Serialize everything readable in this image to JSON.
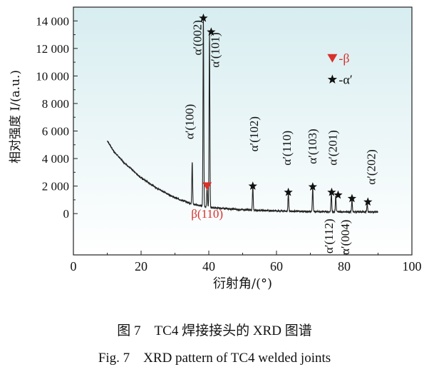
{
  "chart_data": {
    "type": "line",
    "xlabel": "衍射角/(°)",
    "ylabel": "相对强度 I/(a.u.)",
    "xlim": [
      0,
      100
    ],
    "ylim": [
      -3000,
      15000
    ],
    "x_ticks": [
      "0",
      "20",
      "40",
      "60",
      "80",
      "100"
    ],
    "y_ticks": [
      "0",
      "2 000",
      "4 000",
      "6 000",
      "8 000",
      "10 000",
      "12 000",
      "14 000"
    ],
    "x_tick_values": [
      0,
      20,
      40,
      60,
      80,
      100
    ],
    "y_tick_values": [
      0,
      2000,
      4000,
      6000,
      8000,
      10000,
      12000,
      14000
    ],
    "grid": false,
    "legend_position": "top-right",
    "background_gradient": [
      "#d7edf0",
      "#ffffff"
    ],
    "series": [
      {
        "name": "",
        "color": "#222222",
        "baseline": [
          [
            10,
            5300
          ],
          [
            12,
            4500
          ],
          [
            15,
            3700
          ],
          [
            20,
            2600
          ],
          [
            25,
            1800
          ],
          [
            30,
            1150
          ],
          [
            35,
            700
          ],
          [
            40,
            450
          ],
          [
            50,
            280
          ],
          [
            60,
            200
          ],
          [
            70,
            150
          ],
          [
            80,
            130
          ],
          [
            90,
            120
          ]
        ],
        "peaks": [
          [
            35.1,
            3800
          ],
          [
            38.4,
            14200
          ],
          [
            39.5,
            2000
          ],
          [
            40.2,
            13100
          ],
          [
            53.0,
            2000
          ],
          [
            63.5,
            1500
          ],
          [
            70.7,
            1900
          ],
          [
            76.2,
            1500
          ],
          [
            77.5,
            1250
          ],
          [
            82.3,
            1000
          ],
          [
            86.8,
            750
          ]
        ]
      }
    ],
    "peak_markers": [
      {
        "type": "alpha",
        "x": 38.4,
        "y": 14200
      },
      {
        "type": "alpha",
        "x": 40.7,
        "y": 13200
      },
      {
        "type": "beta",
        "x": 39.5,
        "y": 2000
      },
      {
        "type": "alpha",
        "x": 53.0,
        "y": 2000
      },
      {
        "type": "alpha",
        "x": 63.5,
        "y": 1550
      },
      {
        "type": "alpha",
        "x": 70.7,
        "y": 1950
      },
      {
        "type": "alpha",
        "x": 76.3,
        "y": 1550
      },
      {
        "type": "alpha",
        "x": 78.2,
        "y": 1350
      },
      {
        "type": "alpha",
        "x": 82.3,
        "y": 1100
      },
      {
        "type": "alpha",
        "x": 87.0,
        "y": 850
      }
    ],
    "peak_labels": [
      {
        "text": "α′(100)",
        "x": 35.5,
        "y": 5400,
        "rotate": true,
        "color": "#111111"
      },
      {
        "text": "α′(002)",
        "x": 37.8,
        "y": 11500,
        "rotate": true,
        "color": "#111111"
      },
      {
        "text": "α′(101)",
        "x": 43.0,
        "y": 10600,
        "rotate": true,
        "color": "#111111"
      },
      {
        "text": "α′(102)",
        "x": 54.5,
        "y": 4500,
        "rotate": true,
        "color": "#111111"
      },
      {
        "text": "α′(110)",
        "x": 64.2,
        "y": 3500,
        "rotate": true,
        "color": "#111111"
      },
      {
        "text": "α′(103)",
        "x": 71.8,
        "y": 3600,
        "rotate": true,
        "color": "#111111"
      },
      {
        "text": "α′(201)",
        "x": 77.8,
        "y": 3500,
        "rotate": true,
        "color": "#111111"
      },
      {
        "text": "α′(202)",
        "x": 89.2,
        "y": 2100,
        "rotate": true,
        "color": "#111111"
      },
      {
        "text": "α′(112)",
        "x": 76.6,
        "y": -2900,
        "rotate": true,
        "color": "#111111"
      },
      {
        "text": "α′(004)",
        "x": 81.5,
        "y": -3000,
        "rotate": true,
        "color": "#111111"
      },
      {
        "text": "β(110)",
        "x": 39.5,
        "y": -300,
        "rotate": false,
        "color": "#d9302a"
      }
    ],
    "legend": [
      {
        "symbol": "beta",
        "label": "-β",
        "color": "#d9302a"
      },
      {
        "symbol": "alpha",
        "label": "-α′",
        "color": "#111111"
      }
    ]
  },
  "caption": {
    "cn": "图 7　TC4 焊接接头的 XRD 图谱",
    "en": "Fig. 7　XRD pattern of TC4 welded joints"
  }
}
